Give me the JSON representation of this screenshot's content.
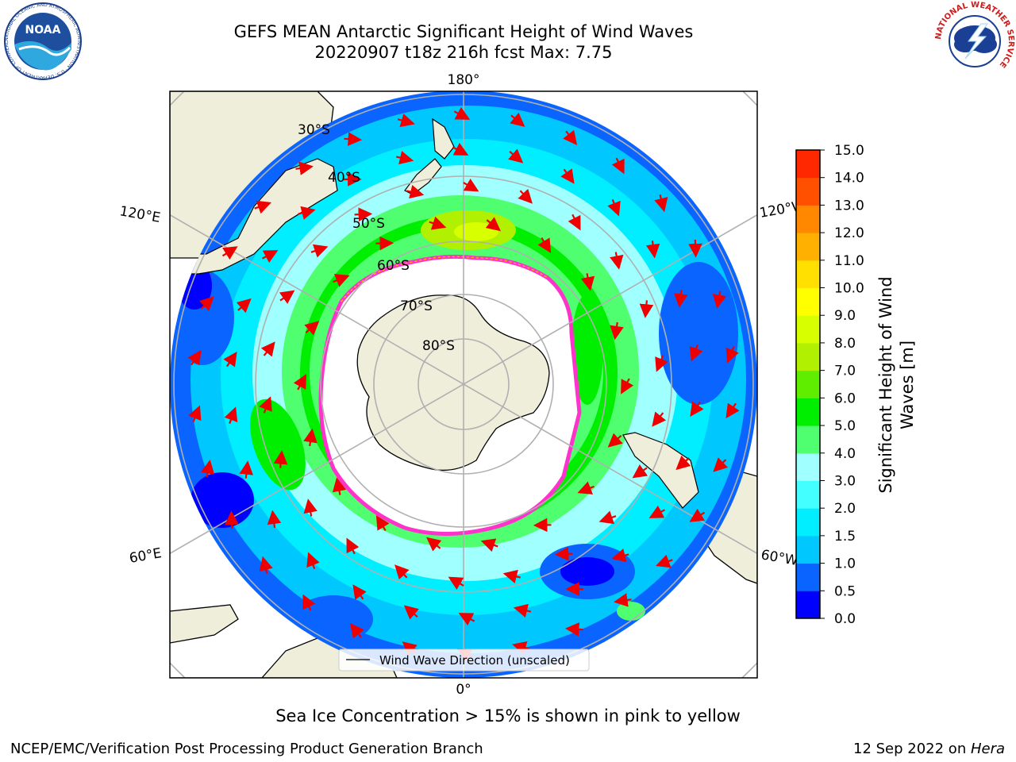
{
  "title": {
    "line1": "GEFS MEAN Antarctic Significant Height of Wind Waves",
    "line2": "20220907 t18z 216h fcst   Max: 7.75"
  },
  "logos": {
    "noaa_text": "NOAA",
    "noaa_ring": "NATIONAL OCEANIC AND ATMOSPHERIC ADMINISTRATION · U.S. DEPARTMENT OF COMMERCE",
    "nws_ring": "NATIONAL WEATHER SERVICE"
  },
  "map": {
    "projection": "south-polar-stereographic",
    "lon_labels": {
      "top": "180°",
      "bottom": "0°",
      "upper_left": "120°E",
      "upper_right": "120°W",
      "lower_left": "60°E",
      "lower_right": "60°W"
    },
    "lat_labels": [
      "30°S",
      "40°S",
      "50°S",
      "60°S",
      "70°S",
      "80°S"
    ],
    "legend_label": "Wind Wave Direction (unscaled)",
    "colors": {
      "land": "#efeedb",
      "ice_edge_pink": "#ff33cc",
      "arrow": "#ee0000",
      "grid": "#b0b0b0"
    }
  },
  "colorbar": {
    "label_line1": "Significant Height of Wind",
    "label_line2": "Waves [m]",
    "ticks": [
      "0.0",
      "0.5",
      "1.0",
      "1.5",
      "2.0",
      "3.0",
      "4.0",
      "5.0",
      "6.0",
      "7.0",
      "8.0",
      "9.0",
      "10.0",
      "11.0",
      "12.0",
      "13.0",
      "14.0",
      "15.0"
    ],
    "colors": [
      "#0000ff",
      "#0a64ff",
      "#00c8ff",
      "#00eeff",
      "#44ffff",
      "#a0ffff",
      "#50ff70",
      "#00ee00",
      "#60ee00",
      "#b0f000",
      "#d8ff00",
      "#ffff00",
      "#ffe000",
      "#ffb000",
      "#ff8800",
      "#ff5000",
      "#ff2800"
    ]
  },
  "caption": "Sea Ice Concentration > 15% is shown in pink to yellow",
  "footer": {
    "left": "NCEP/EMC/Verification Post Processing Product Generation Branch",
    "right_date": "12 Sep 2022 on ",
    "right_host": "Hera"
  }
}
